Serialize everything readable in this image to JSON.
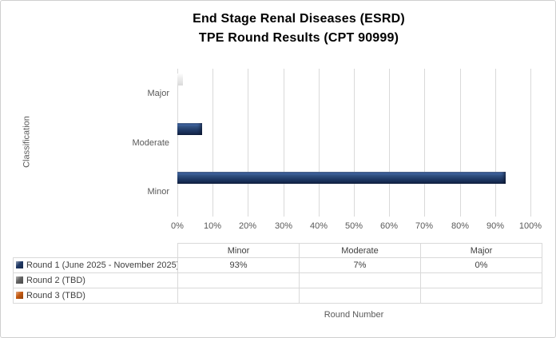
{
  "chart_data": {
    "type": "bar",
    "orientation": "horizontal",
    "title_lines": [
      "End Stage Renal Diseases (ESRD)",
      "TPE Round Results (CPT 90999)"
    ],
    "xlabel": "Round Number",
    "ylabel": "Classification",
    "categories": [
      "Major",
      "Moderate",
      "Minor"
    ],
    "x_ticks": [
      "0%",
      "10%",
      "20%",
      "30%",
      "40%",
      "50%",
      "60%",
      "70%",
      "80%",
      "90%",
      "100%"
    ],
    "xlim": [
      0,
      100
    ],
    "grid": true,
    "legend_position": "table-left",
    "series": [
      {
        "name": "Round 1 (June 2025 - November 2025)",
        "color": "#1F3864",
        "values": {
          "Major": 0,
          "Moderate": 7,
          "Minor": 93
        }
      },
      {
        "name": "Round 2 (TBD)",
        "color": "#636363",
        "values": {}
      },
      {
        "name": "Round 3 (TBD)",
        "color": "#C55A11",
        "values": {}
      }
    ],
    "data_table": {
      "columns": [
        "Minor",
        "Moderate",
        "Major"
      ],
      "rows": [
        {
          "label": "Round 1 (June 2025 - November 2025)",
          "color": "#1F3864",
          "values": [
            "93%",
            "7%",
            "0%"
          ]
        },
        {
          "label": "Round 2 (TBD)",
          "color": "#636363",
          "values": [
            "",
            "",
            ""
          ]
        },
        {
          "label": "Round 3 (TBD)",
          "color": "#C55A11",
          "values": [
            "",
            "",
            ""
          ]
        }
      ]
    },
    "colors": {
      "bar_fill": "#1F3864",
      "gridline": "#D9D9D9",
      "axis_text": "#595959",
      "table_text": "#3F3F3F",
      "title_text": "#000000",
      "chart_border": "#CFCFCF"
    }
  }
}
